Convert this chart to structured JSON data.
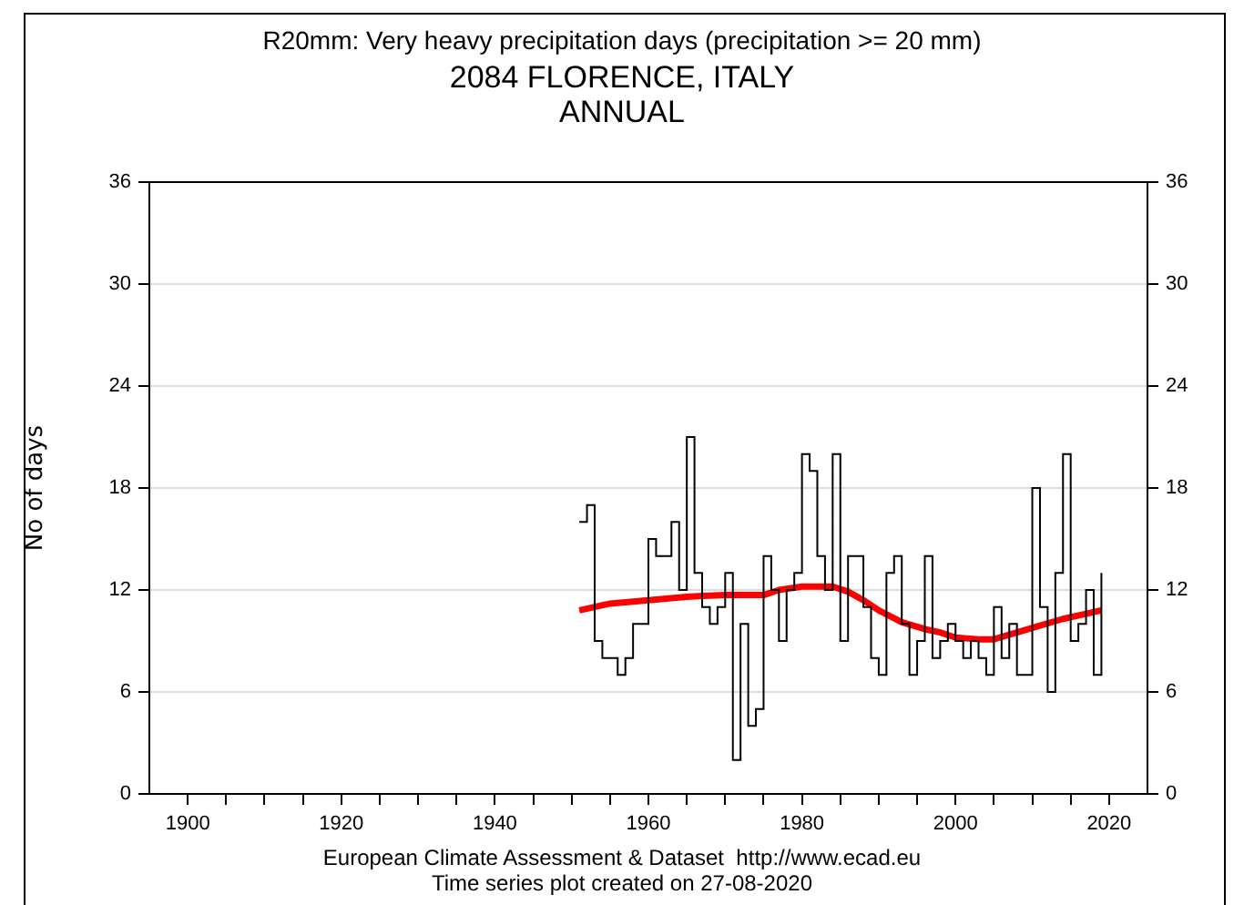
{
  "chart_data": {
    "type": "step",
    "title": "R20mm: Very heavy precipitation days (precipitation >= 20 mm)",
    "subtitle": "2084 FLORENCE, ITALY\nANNUAL",
    "ylabel": "No of days",
    "annotations": [
      "European Climate Assessment & Dataset  http://www.ecad.eu",
      "Time series plot created on 27-08-2020"
    ],
    "series": [
      {
        "color": "#000000",
        "x": [
          1951,
          1952,
          1953,
          1954,
          1955,
          1956,
          1957,
          1958,
          1959,
          1960,
          1961,
          1962,
          1963,
          1964,
          1965,
          1966,
          1967,
          1968,
          1969,
          1970,
          1971,
          1972,
          1973,
          1974,
          1975,
          1976,
          1977,
          1978,
          1979,
          1980,
          1981,
          1982,
          1983,
          1984,
          1985,
          1986,
          1987,
          1988,
          1989,
          1990,
          1991,
          1992,
          1993,
          1994,
          1995,
          1996,
          1997,
          1998,
          1999,
          2000,
          2001,
          2002,
          2003,
          2004,
          2005,
          2006,
          2007,
          2008,
          2009,
          2010,
          2011,
          2012,
          2013,
          2014,
          2015,
          2016,
          2017,
          2018,
          2019
        ],
        "values": [
          16,
          17,
          9,
          8,
          8,
          7,
          8,
          10,
          10,
          15,
          14,
          14,
          16,
          12,
          21,
          13,
          11,
          10,
          11,
          13,
          2,
          10,
          4,
          5,
          14,
          12,
          9,
          12,
          13,
          20,
          19,
          14,
          12,
          20,
          9,
          14,
          14,
          11,
          8,
          7,
          13,
          14,
          10,
          7,
          9,
          14,
          8,
          9,
          10,
          9,
          8,
          9,
          8,
          7,
          11,
          8,
          10,
          7,
          7,
          18,
          11,
          6,
          13,
          20,
          9,
          10,
          12,
          7,
          13
        ]
      },
      {
        "type": "line",
        "color": "#ff0000",
        "x": [
          1951,
          1955,
          1960,
          1965,
          1970,
          1975,
          1977,
          1980,
          1984,
          1986,
          1988,
          1990,
          1993,
          1996,
          1998,
          2000,
          2003,
          2005,
          2008,
          2011,
          2014,
          2017,
          2019
        ],
        "values": [
          10.8,
          11.2,
          11.4,
          11.6,
          11.7,
          11.7,
          12.0,
          12.2,
          12.2,
          11.9,
          11.4,
          10.8,
          10.1,
          9.7,
          9.5,
          9.2,
          9.1,
          9.1,
          9.5,
          9.9,
          10.3,
          10.6,
          10.8
        ]
      }
    ],
    "xlim": [
      1895,
      2025
    ],
    "xticks": [
      1900,
      {
        "value": 1905,
        "label": null
      },
      {
        "value": 1910,
        "label": null
      },
      {
        "value": 1915,
        "label": null
      },
      1920,
      {
        "value": 1925,
        "label": null
      },
      {
        "value": 1930,
        "label": null
      },
      {
        "value": 1935,
        "label": null
      },
      1940,
      {
        "value": 1945,
        "label": null
      },
      {
        "value": 1950,
        "label": null
      },
      {
        "value": 1955,
        "label": null
      },
      1960,
      {
        "value": 1965,
        "label": null
      },
      {
        "value": 1970,
        "label": null
      },
      {
        "value": 1975,
        "label": null
      },
      1980,
      {
        "value": 1985,
        "label": null
      },
      {
        "value": 1990,
        "label": null
      },
      {
        "value": 1995,
        "label": null
      },
      2000,
      {
        "value": 2005,
        "label": null
      },
      {
        "value": 2010,
        "label": null
      },
      {
        "value": 2015,
        "label": null
      },
      2020
    ],
    "ylim": [
      0,
      36
    ],
    "yticks": [
      0,
      6,
      12,
      18,
      24,
      30,
      36
    ],
    "y2lim": [
      0,
      36
    ],
    "y2ticks": [
      0,
      6,
      12,
      18,
      24,
      30,
      36
    ],
    "grid": "y",
    "legend": false,
    "marker": "none"
  }
}
